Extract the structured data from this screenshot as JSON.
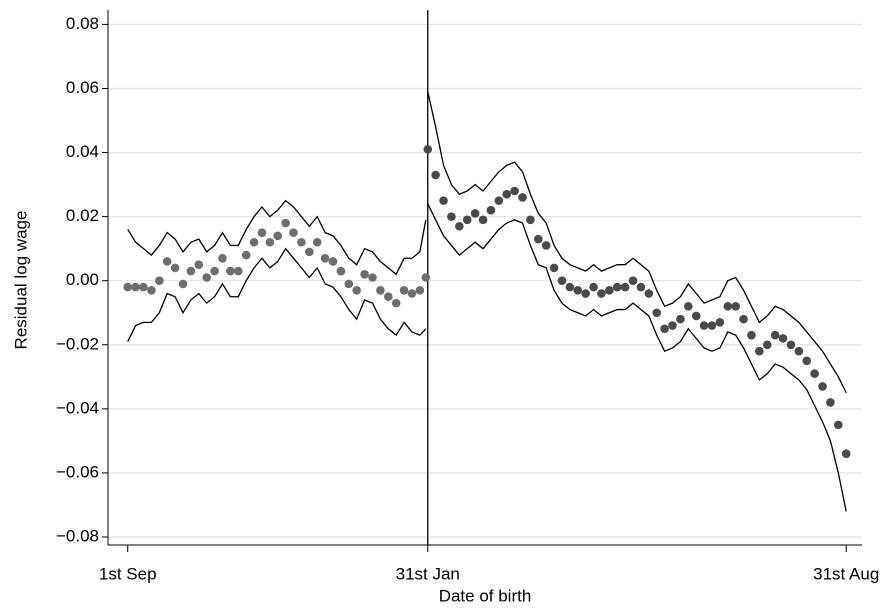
{
  "chart_data": {
    "type": "scatter",
    "xlabel": "Date of birth",
    "ylabel": "Residual log wage",
    "xlim": [
      -10,
      372
    ],
    "ylim": [
      -0.0825,
      0.0845
    ],
    "xticks": [
      {
        "value": 0,
        "label": "1st Sep"
      },
      {
        "value": 152,
        "label": "31st Jan"
      },
      {
        "value": 364,
        "label": "31st Aug"
      }
    ],
    "yticks": [
      {
        "value": -0.08,
        "label": "−0.08"
      },
      {
        "value": -0.06,
        "label": "−0.06"
      },
      {
        "value": -0.04,
        "label": "−0.04"
      },
      {
        "value": -0.02,
        "label": "−0.02"
      },
      {
        "value": 0,
        "label": "0.00"
      },
      0.02,
      0.04,
      0.06,
      0.08
    ],
    "grid": true,
    "vline": 152,
    "band_color": "#000000",
    "series": [
      {
        "color": "#6e6e6e",
        "x": [
          0,
          4,
          8,
          12,
          16,
          20,
          24,
          28,
          32,
          36,
          40,
          44,
          48,
          52,
          56,
          60,
          64,
          68,
          72,
          76,
          80,
          84,
          88,
          92,
          96,
          100,
          104,
          108,
          112,
          116,
          120,
          124,
          128,
          132,
          136,
          140,
          144,
          148,
          151
        ],
        "values": [
          -0.002,
          -0.002,
          -0.002,
          -0.003,
          0.0,
          0.006,
          0.004,
          -0.001,
          0.003,
          0.005,
          0.001,
          0.003,
          0.007,
          0.003,
          0.003,
          0.008,
          0.012,
          0.015,
          0.012,
          0.014,
          0.018,
          0.015,
          0.012,
          0.009,
          0.012,
          0.007,
          0.006,
          0.003,
          -0.001,
          -0.003,
          0.002,
          0.001,
          -0.003,
          -0.005,
          -0.007,
          -0.003,
          -0.004,
          -0.003,
          0.001
        ],
        "upper": [
          0.016,
          0.012,
          0.01,
          0.008,
          0.011,
          0.015,
          0.013,
          0.009,
          0.012,
          0.013,
          0.009,
          0.011,
          0.015,
          0.011,
          0.011,
          0.016,
          0.02,
          0.023,
          0.02,
          0.022,
          0.025,
          0.023,
          0.02,
          0.017,
          0.02,
          0.015,
          0.014,
          0.011,
          0.007,
          0.005,
          0.01,
          0.009,
          0.006,
          0.004,
          0.002,
          0.007,
          0.007,
          0.009,
          0.019
        ],
        "lower": [
          -0.019,
          -0.014,
          -0.013,
          -0.013,
          -0.01,
          -0.004,
          -0.005,
          -0.01,
          -0.006,
          -0.004,
          -0.007,
          -0.005,
          -0.001,
          -0.005,
          -0.005,
          0.0,
          0.004,
          0.007,
          0.004,
          0.006,
          0.01,
          0.007,
          0.004,
          0.001,
          0.004,
          -0.001,
          -0.002,
          -0.005,
          -0.009,
          -0.012,
          -0.006,
          -0.007,
          -0.012,
          -0.015,
          -0.017,
          -0.013,
          -0.016,
          -0.017,
          -0.015
        ]
      },
      {
        "color": "#4a4a4a",
        "x": [
          152,
          156,
          160,
          164,
          168,
          172,
          176,
          180,
          184,
          188,
          192,
          196,
          200,
          204,
          208,
          212,
          216,
          220,
          224,
          228,
          232,
          236,
          240,
          244,
          248,
          252,
          256,
          260,
          264,
          268,
          272,
          276,
          280,
          284,
          288,
          292,
          296,
          300,
          304,
          308,
          312,
          316,
          320,
          324,
          328,
          332,
          336,
          340,
          344,
          348,
          352,
          356,
          360,
          364
        ],
        "values": [
          0.041,
          0.033,
          0.025,
          0.02,
          0.017,
          0.019,
          0.021,
          0.019,
          0.022,
          0.025,
          0.027,
          0.028,
          0.026,
          0.019,
          0.013,
          0.011,
          0.004,
          0.0,
          -0.002,
          -0.003,
          -0.004,
          -0.002,
          -0.004,
          -0.003,
          -0.002,
          -0.002,
          0.0,
          -0.002,
          -0.004,
          -0.01,
          -0.015,
          -0.014,
          -0.012,
          -0.008,
          -0.011,
          -0.014,
          -0.014,
          -0.013,
          -0.008,
          -0.008,
          -0.012,
          -0.017,
          -0.022,
          -0.02,
          -0.017,
          -0.018,
          -0.02,
          -0.022,
          -0.025,
          -0.029,
          -0.033,
          -0.038,
          -0.045,
          -0.054
        ],
        "upper": [
          0.059,
          0.048,
          0.036,
          0.03,
          0.027,
          0.028,
          0.03,
          0.028,
          0.031,
          0.034,
          0.036,
          0.037,
          0.034,
          0.027,
          0.021,
          0.018,
          0.011,
          0.007,
          0.005,
          0.004,
          0.003,
          0.005,
          0.003,
          0.004,
          0.005,
          0.005,
          0.007,
          0.005,
          0.003,
          -0.003,
          -0.008,
          -0.007,
          -0.005,
          -0.001,
          -0.004,
          -0.007,
          -0.006,
          -0.005,
          0.0,
          0.001,
          -0.003,
          -0.008,
          -0.013,
          -0.011,
          -0.008,
          -0.009,
          -0.011,
          -0.013,
          -0.016,
          -0.019,
          -0.022,
          -0.026,
          -0.03,
          -0.035
        ],
        "lower": [
          0.024,
          0.019,
          0.014,
          0.011,
          0.008,
          0.01,
          0.012,
          0.01,
          0.013,
          0.016,
          0.018,
          0.019,
          0.018,
          0.011,
          0.005,
          0.004,
          -0.003,
          -0.007,
          -0.009,
          -0.01,
          -0.011,
          -0.009,
          -0.011,
          -0.01,
          -0.009,
          -0.009,
          -0.007,
          -0.009,
          -0.011,
          -0.017,
          -0.022,
          -0.021,
          -0.019,
          -0.015,
          -0.018,
          -0.021,
          -0.022,
          -0.021,
          -0.016,
          -0.017,
          -0.021,
          -0.026,
          -0.031,
          -0.029,
          -0.026,
          -0.027,
          -0.029,
          -0.031,
          -0.034,
          -0.039,
          -0.044,
          -0.05,
          -0.06,
          -0.072
        ]
      }
    ]
  }
}
